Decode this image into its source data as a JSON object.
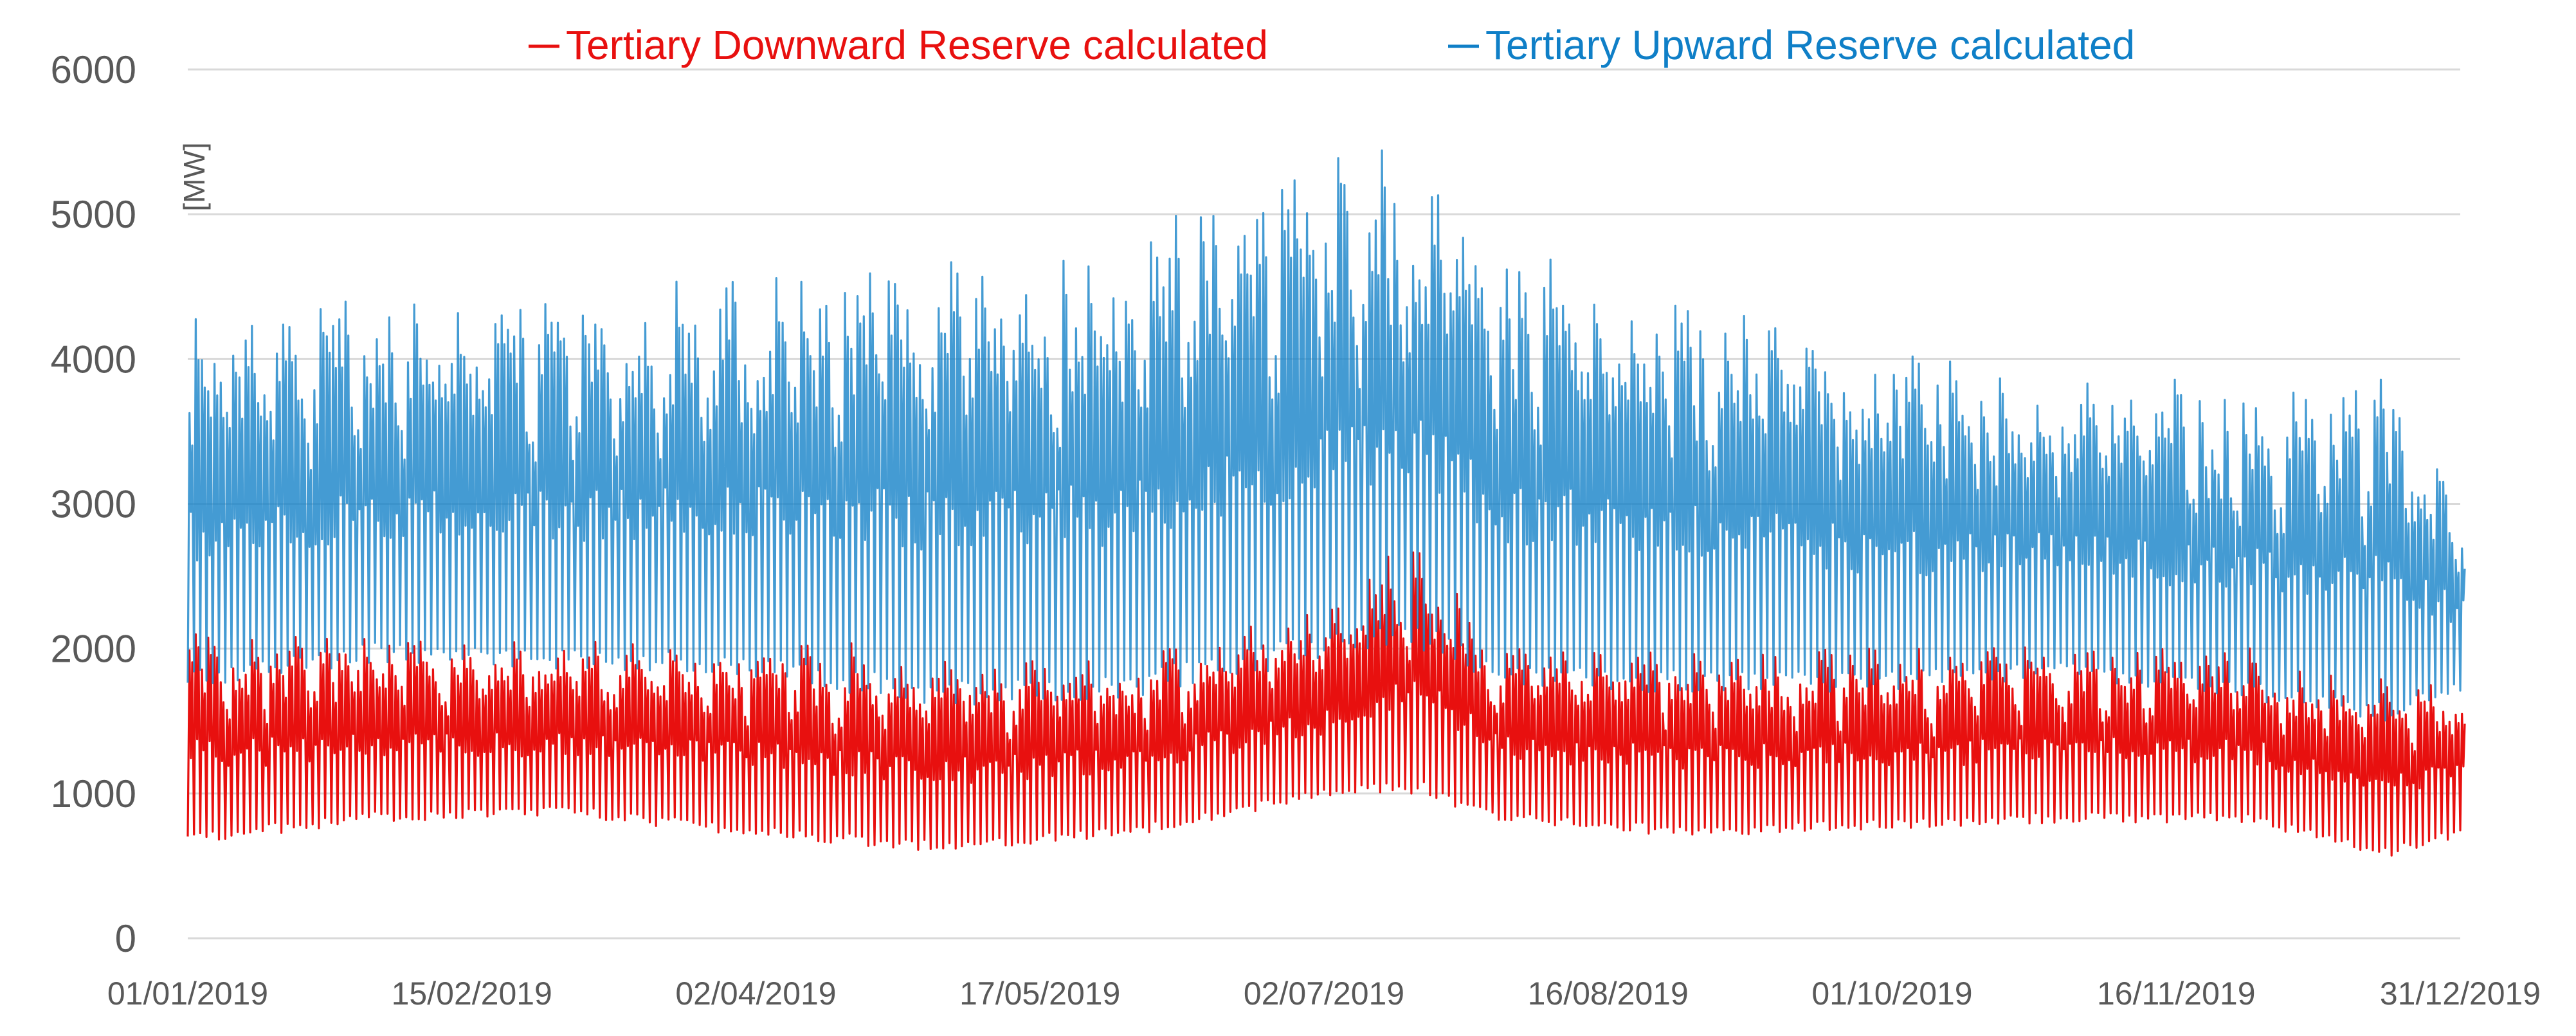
{
  "chart_data": {
    "type": "line",
    "title": "",
    "xlabel": "",
    "ylabel": "[MW]",
    "ylim": [
      0,
      6000
    ],
    "yticks": [
      0,
      1000,
      2000,
      3000,
      4000,
      5000,
      6000
    ],
    "ytick_labels": [
      "0",
      "1000",
      "2000",
      "3000",
      "4000",
      "5000",
      "6000"
    ],
    "xlim": [
      "01/01/2019",
      "31/12/2019"
    ],
    "xtick_labels": [
      "01/01/2019",
      "15/02/2019",
      "02/04/2019",
      "17/05/2019",
      "02/07/2019",
      "16/08/2019",
      "01/10/2019",
      "16/11/2019",
      "31/12/2019"
    ],
    "grid": true,
    "legend_position": "top",
    "series": [
      {
        "name": "Tertiary Downward Reserve calculated",
        "color": "#e8100f",
        "envelope_days": [
          0,
          30,
          60,
          90,
          120,
          150,
          180,
          197,
          210,
          240,
          270,
          300,
          330,
          352,
          364
        ],
        "min_values": [
          650,
          800,
          850,
          700,
          600,
          700,
          950,
          1000,
          800,
          700,
          750,
          800,
          800,
          550,
          700
        ],
        "max_values": [
          2100,
          2050,
          2000,
          2050,
          1900,
          1950,
          2200,
          2700,
          2000,
          2000,
          1950,
          2000,
          1950,
          1800,
          1700
        ]
      },
      {
        "name": "Tertiary Upward Reserve calculated",
        "color": "#0f7fc7",
        "envelope_days": [
          0,
          30,
          60,
          90,
          120,
          150,
          180,
          197,
          210,
          240,
          270,
          300,
          330,
          352,
          364
        ],
        "min_values": [
          1700,
          1900,
          1850,
          1800,
          1600,
          1650,
          1900,
          2000,
          1700,
          1700,
          1700,
          1800,
          1650,
          1500,
          1700
        ],
        "max_values": [
          4200,
          4300,
          4350,
          4500,
          4600,
          4700,
          5200,
          5300,
          4600,
          4400,
          4000,
          3800,
          3750,
          3800,
          3000
        ]
      }
    ]
  }
}
